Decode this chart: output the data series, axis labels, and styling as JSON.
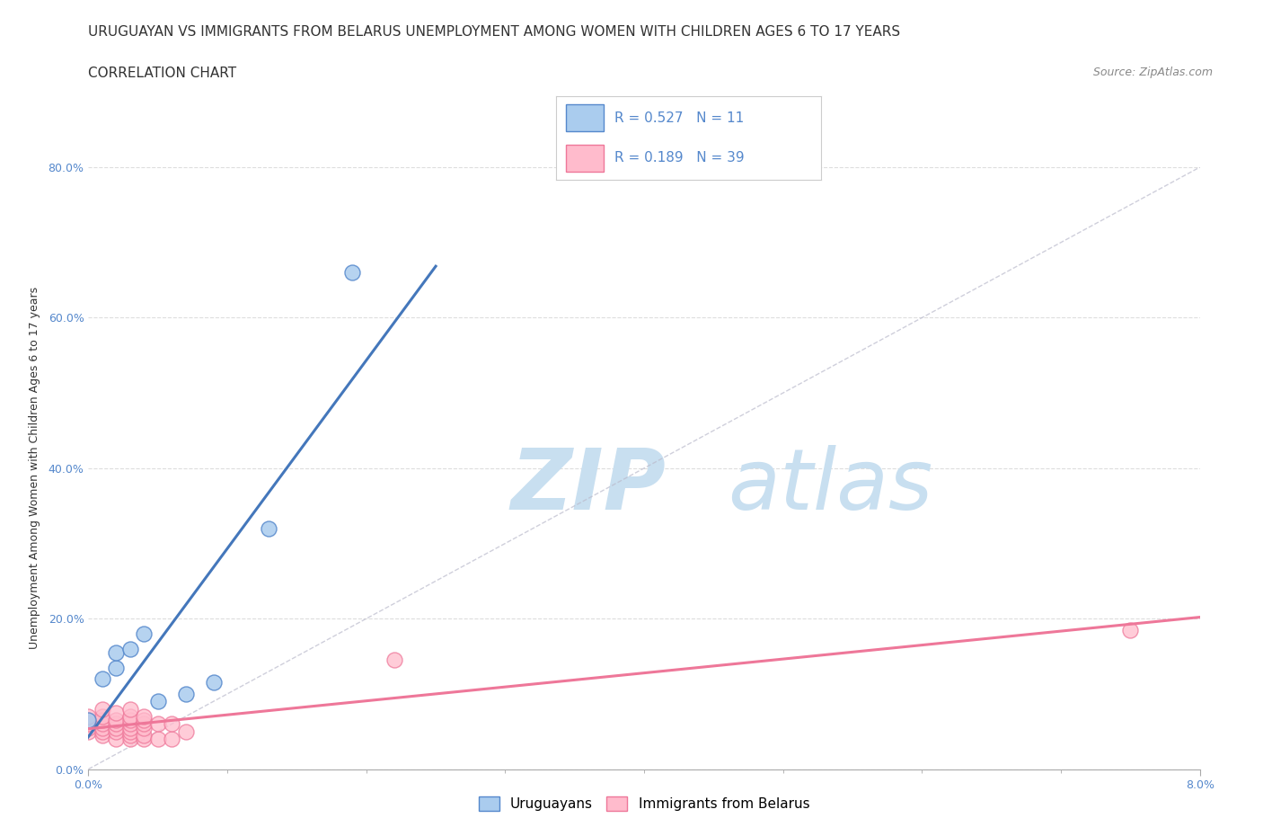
{
  "title_line1": "URUGUAYAN VS IMMIGRANTS FROM BELARUS UNEMPLOYMENT AMONG WOMEN WITH CHILDREN AGES 6 TO 17 YEARS",
  "title_line2": "CORRELATION CHART",
  "source": "Source: ZipAtlas.com",
  "ylabel_label": "Unemployment Among Women with Children Ages 6 to 17 years",
  "legend_label1": "Uruguayans",
  "legend_label2": "Immigrants from Belarus",
  "r1": 0.527,
  "n1": 11,
  "r2": 0.189,
  "n2": 39,
  "xmin": 0.0,
  "xmax": 0.08,
  "ymin": 0.0,
  "ymax": 0.8,
  "uruguayan_x": [
    0.0,
    0.001,
    0.002,
    0.002,
    0.003,
    0.004,
    0.005,
    0.007,
    0.009,
    0.013,
    0.019
  ],
  "uruguayan_y": [
    0.065,
    0.12,
    0.135,
    0.155,
    0.16,
    0.18,
    0.09,
    0.1,
    0.115,
    0.32,
    0.66
  ],
  "belarus_x": [
    0.0,
    0.0,
    0.0,
    0.0,
    0.0,
    0.001,
    0.001,
    0.001,
    0.001,
    0.001,
    0.001,
    0.001,
    0.002,
    0.002,
    0.002,
    0.002,
    0.002,
    0.002,
    0.003,
    0.003,
    0.003,
    0.003,
    0.003,
    0.003,
    0.003,
    0.003,
    0.004,
    0.004,
    0.004,
    0.004,
    0.004,
    0.004,
    0.005,
    0.005,
    0.006,
    0.006,
    0.007,
    0.022,
    0.075
  ],
  "belarus_y": [
    0.05,
    0.055,
    0.06,
    0.065,
    0.07,
    0.045,
    0.05,
    0.055,
    0.06,
    0.065,
    0.07,
    0.08,
    0.04,
    0.05,
    0.055,
    0.06,
    0.065,
    0.075,
    0.04,
    0.045,
    0.05,
    0.055,
    0.06,
    0.065,
    0.07,
    0.08,
    0.04,
    0.045,
    0.055,
    0.06,
    0.065,
    0.07,
    0.04,
    0.06,
    0.04,
    0.06,
    0.05,
    0.145,
    0.185
  ],
  "color_uruguayan_fill": "#aaccee",
  "color_uruguayan_edge": "#5588cc",
  "color_belarus_fill": "#ffbbcc",
  "color_belarus_edge": "#ee7799",
  "color_uruguayan_line": "#4477bb",
  "color_belarus_line": "#ee7799",
  "color_diagonal": "#bbbbcc",
  "watermark_zip": "ZIP",
  "watermark_atlas": "atlas",
  "watermark_color_zip": "#c8dff0",
  "watermark_color_atlas": "#c8dff0",
  "title_fontsize": 11,
  "subtitle_fontsize": 11,
  "source_fontsize": 9,
  "ylabel_fontsize": 9,
  "tick_fontsize": 9,
  "legend_fontsize": 11
}
